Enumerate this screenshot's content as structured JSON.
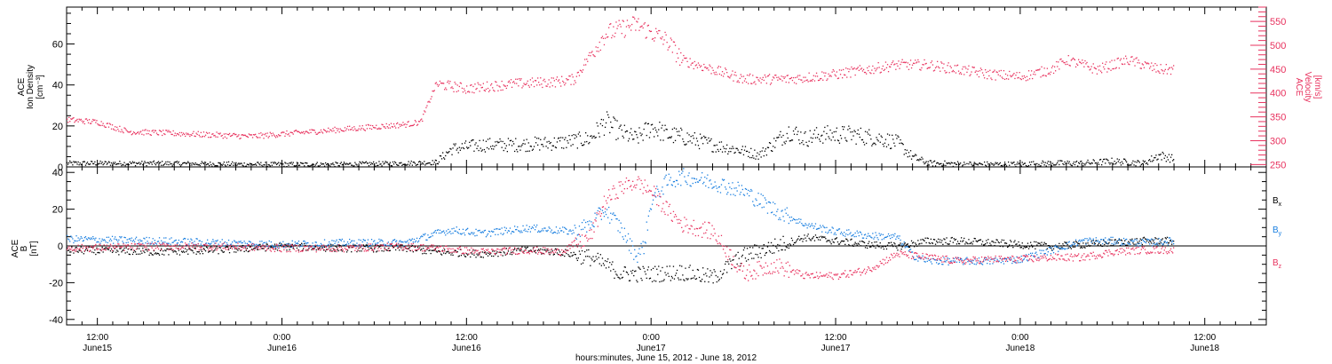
{
  "colors": {
    "black": "#000000",
    "pink": "#e8335f",
    "blue": "#1a7fe0",
    "axis": "#000000"
  },
  "x_axis": {
    "label": "hours:minutes, June 15, 2012 - June 18, 2012",
    "range_hours": [
      -14.0,
      64.0
    ],
    "ticks": [
      {
        "time": "12:00",
        "date": "June15",
        "hours": -12
      },
      {
        "time": "0:00",
        "date": "June16",
        "hours": 0
      },
      {
        "time": "12:00",
        "date": "June16",
        "hours": 12
      },
      {
        "time": "0:00",
        "date": "June17",
        "hours": 24
      },
      {
        "time": "12:00",
        "date": "June17",
        "hours": 36
      },
      {
        "time": "0:00",
        "date": "June18",
        "hours": 48
      },
      {
        "time": "12:00",
        "date": "June18",
        "hours": 60
      }
    ]
  },
  "chart_data": [
    {
      "type": "scatter",
      "title": "",
      "ylabel_left": [
        "ACE",
        "Ion Density",
        "[cm⁻³]"
      ],
      "ylabel_right": [
        "ACE",
        "Velocity",
        "[km/s]"
      ],
      "ylim_left": [
        0,
        78
      ],
      "ylim_right": [
        245,
        580
      ],
      "left_ticks": [
        0,
        20,
        40,
        60
      ],
      "right_ticks": [
        250,
        300,
        350,
        400,
        450,
        500,
        550
      ],
      "series": [
        {
          "axis": "left",
          "color_key": "black",
          "points": [
            [
              -14,
              2
            ],
            [
              -8,
              2
            ],
            [
              -2,
              1.5
            ],
            [
              4,
              1.5
            ],
            [
              8,
              2
            ],
            [
              10,
              2.5
            ],
            [
              11,
              9
            ],
            [
              13,
              11
            ],
            [
              15,
              11
            ],
            [
              18,
              12
            ],
            [
              20,
              14
            ],
            [
              21,
              22
            ],
            [
              22,
              17
            ],
            [
              23,
              14
            ],
            [
              24,
              20
            ],
            [
              25,
              16
            ],
            [
              26,
              15
            ],
            [
              28,
              11
            ],
            [
              30,
              8
            ],
            [
              31,
              6
            ],
            [
              32,
              12
            ],
            [
              33,
              18
            ],
            [
              34,
              14
            ],
            [
              35,
              16
            ],
            [
              37,
              16
            ],
            [
              39,
              14
            ],
            [
              40,
              12
            ],
            [
              41,
              5
            ],
            [
              42,
              2
            ],
            [
              45,
              1.5
            ],
            [
              48,
              1.5
            ],
            [
              50,
              2
            ],
            [
              52,
              2
            ],
            [
              54,
              3
            ],
            [
              56,
              2
            ],
            [
              57,
              6
            ],
            [
              58,
              4
            ]
          ]
        },
        {
          "axis": "right",
          "color_key": "pink",
          "points": [
            [
              -14,
              345
            ],
            [
              -12,
              340
            ],
            [
              -10,
              320
            ],
            [
              -6,
              315
            ],
            [
              -2,
              310
            ],
            [
              2,
              320
            ],
            [
              6,
              330
            ],
            [
              8,
              335
            ],
            [
              9,
              340
            ],
            [
              10,
              420
            ],
            [
              12,
              410
            ],
            [
              15,
              420
            ],
            [
              18,
              425
            ],
            [
              19,
              430
            ],
            [
              20,
              480
            ],
            [
              21,
              525
            ],
            [
              23,
              545
            ],
            [
              25,
              510
            ],
            [
              26,
              470
            ],
            [
              28,
              450
            ],
            [
              30,
              430
            ],
            [
              33,
              430
            ],
            [
              36,
              440
            ],
            [
              38,
              450
            ],
            [
              40,
              460
            ],
            [
              42,
              460
            ],
            [
              44,
              450
            ],
            [
              46,
              440
            ],
            [
              48,
              435
            ],
            [
              50,
              450
            ],
            [
              51,
              470
            ],
            [
              53,
              450
            ],
            [
              55,
              470
            ],
            [
              57,
              450
            ],
            [
              58,
              450
            ]
          ]
        }
      ]
    },
    {
      "type": "scatter",
      "title": "",
      "ylabel_left": [
        "ACE",
        "B",
        "[nT]"
      ],
      "ylim_left": [
        -43,
        43
      ],
      "left_ticks": [
        -40,
        -20,
        0,
        20,
        40
      ],
      "zero_line": true,
      "legend": [
        {
          "label": "B",
          "sub": "x",
          "color_key": "black"
        },
        {
          "label": "B",
          "sub": "y",
          "color_key": "blue"
        },
        {
          "label": "B",
          "sub": "z",
          "color_key": "pink"
        }
      ],
      "series": [
        {
          "name": "Bx",
          "color_key": "black",
          "points": [
            [
              -14,
              -2
            ],
            [
              -8,
              -3
            ],
            [
              -4,
              -2
            ],
            [
              0,
              0
            ],
            [
              4,
              -1
            ],
            [
              8,
              -1
            ],
            [
              10,
              -3
            ],
            [
              13,
              -4
            ],
            [
              16,
              -2
            ],
            [
              18,
              -3
            ],
            [
              20,
              -6
            ],
            [
              21,
              -10
            ],
            [
              22,
              -15
            ],
            [
              24,
              -15
            ],
            [
              26,
              -14
            ],
            [
              28,
              -17
            ],
            [
              30,
              -5
            ],
            [
              32,
              0
            ],
            [
              34,
              5
            ],
            [
              36,
              3
            ],
            [
              38,
              1
            ],
            [
              40,
              0
            ],
            [
              42,
              3
            ],
            [
              44,
              3
            ],
            [
              46,
              2
            ],
            [
              48,
              1
            ],
            [
              50,
              0
            ],
            [
              52,
              1
            ],
            [
              54,
              2
            ],
            [
              56,
              3
            ],
            [
              58,
              3
            ]
          ]
        },
        {
          "name": "By",
          "color_key": "blue",
          "points": [
            [
              -14,
              4
            ],
            [
              -8,
              3
            ],
            [
              -4,
              2
            ],
            [
              0,
              1
            ],
            [
              4,
              2
            ],
            [
              8,
              2
            ],
            [
              10,
              7
            ],
            [
              11,
              9
            ],
            [
              13,
              7
            ],
            [
              16,
              10
            ],
            [
              19,
              8
            ],
            [
              20,
              12
            ],
            [
              21,
              20
            ],
            [
              22,
              10
            ],
            [
              23,
              -5
            ],
            [
              23.5,
              0
            ],
            [
              24,
              25
            ],
            [
              25,
              35
            ],
            [
              26,
              38
            ],
            [
              28,
              35
            ],
            [
              30,
              30
            ],
            [
              32,
              20
            ],
            [
              34,
              12
            ],
            [
              35,
              10
            ],
            [
              36,
              8
            ],
            [
              38,
              6
            ],
            [
              40,
              5
            ],
            [
              41,
              -5
            ],
            [
              42,
              -8
            ],
            [
              44,
              -8
            ],
            [
              46,
              -8
            ],
            [
              48,
              -7
            ],
            [
              50,
              -2
            ],
            [
              52,
              3
            ],
            [
              54,
              3
            ],
            [
              56,
              2
            ],
            [
              58,
              3
            ]
          ]
        },
        {
          "name": "Bz",
          "color_key": "pink",
          "points": [
            [
              -14,
              -1
            ],
            [
              -8,
              0
            ],
            [
              -4,
              0
            ],
            [
              0,
              -1
            ],
            [
              4,
              -1
            ],
            [
              8,
              0
            ],
            [
              10,
              -1
            ],
            [
              13,
              -3
            ],
            [
              16,
              -2
            ],
            [
              18,
              -3
            ],
            [
              20,
              5
            ],
            [
              21,
              25
            ],
            [
              22,
              32
            ],
            [
              23,
              35
            ],
            [
              24,
              30
            ],
            [
              25,
              20
            ],
            [
              26,
              12
            ],
            [
              28,
              8
            ],
            [
              30,
              -15
            ],
            [
              32,
              -10
            ],
            [
              34,
              -16
            ],
            [
              36,
              -16
            ],
            [
              38,
              -13
            ],
            [
              40,
              -4
            ],
            [
              42,
              -6
            ],
            [
              44,
              -8
            ],
            [
              46,
              -7
            ],
            [
              48,
              -7
            ],
            [
              50,
              -6
            ],
            [
              52,
              -6
            ],
            [
              54,
              -3
            ],
            [
              56,
              -2
            ],
            [
              58,
              -2
            ]
          ]
        }
      ]
    }
  ]
}
